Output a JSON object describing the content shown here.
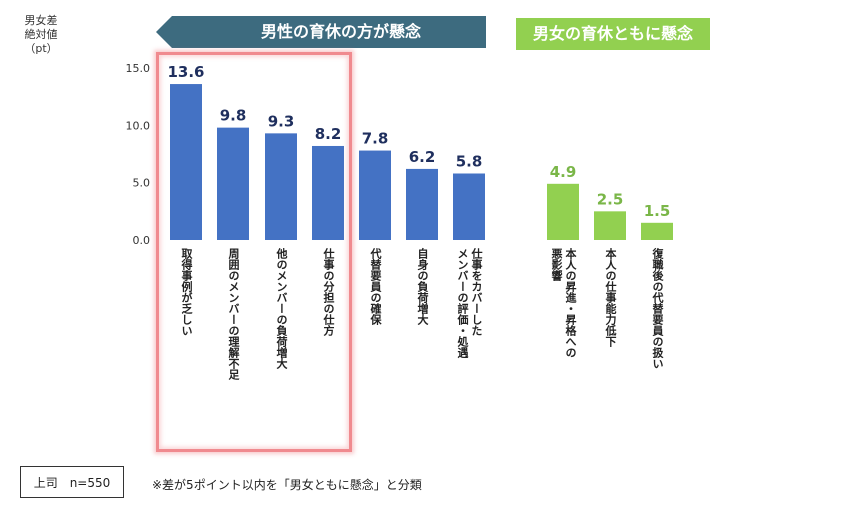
{
  "y_axis_label": [
    "男女差",
    "絶対値",
    "（pt）"
  ],
  "male_banner": "男性の育休の方が懸念",
  "both_banner": "男女の育休ともに懸念",
  "legend_box": "上司　n=550",
  "footnote": "※差が5ポイント以内を「男女ともに懸念」と分類",
  "colors": {
    "male_bar": "#4472c4",
    "both_bar": "#92d050",
    "male_value": "#1f2f5e",
    "both_value": "#7ab648",
    "male_banner": "#3d6b7f",
    "highlight": "#f08a8f"
  },
  "chart_data": {
    "type": "bar",
    "title": "",
    "ylabel": "男女差絶対値（pt）",
    "ylim": [
      0,
      15
    ],
    "yticks": [
      "15.0",
      "10.0",
      "5.0",
      "0.0"
    ],
    "categories": [
      "取得事例が乏しい",
      "周囲のメンバーの理解不足",
      "他のメンバーの負荷増大",
      "仕事の分担の仕方",
      "代替要員の確保",
      "自身の負荷増大",
      "仕事をカバーしたメンバーの評価・処遇",
      "本人の昇進・昇格への悪影響",
      "本人の仕事能力低下",
      "復職後の代替要員の扱い"
    ],
    "values": [
      13.6,
      9.8,
      9.3,
      8.2,
      7.8,
      6.2,
      5.8,
      4.9,
      2.5,
      1.5
    ],
    "value_labels": [
      "13.6",
      "9.8",
      "9.3",
      "8.2",
      "7.8",
      "6.2",
      "5.8",
      "4.9",
      "2.5",
      "1.5"
    ],
    "groups": [
      "male",
      "male",
      "male",
      "male",
      "male",
      "male",
      "male",
      "both",
      "both",
      "both"
    ],
    "label_columns": [
      [
        "取得事例が乏しい"
      ],
      [
        "周囲のメンバーの理解不足"
      ],
      [
        "他のメンバーの負荷増大"
      ],
      [
        "仕事の分担の仕方"
      ],
      [
        "代替要員の確保"
      ],
      [
        "自身の負荷増大"
      ],
      [
        "仕事をカバーした",
        "メンバーの評価・処遇"
      ],
      [
        "本人の昇進・昇格への",
        "悪影響"
      ],
      [
        "本人の仕事能力低下"
      ],
      [
        "復職後の代替要員の扱い"
      ]
    ]
  }
}
